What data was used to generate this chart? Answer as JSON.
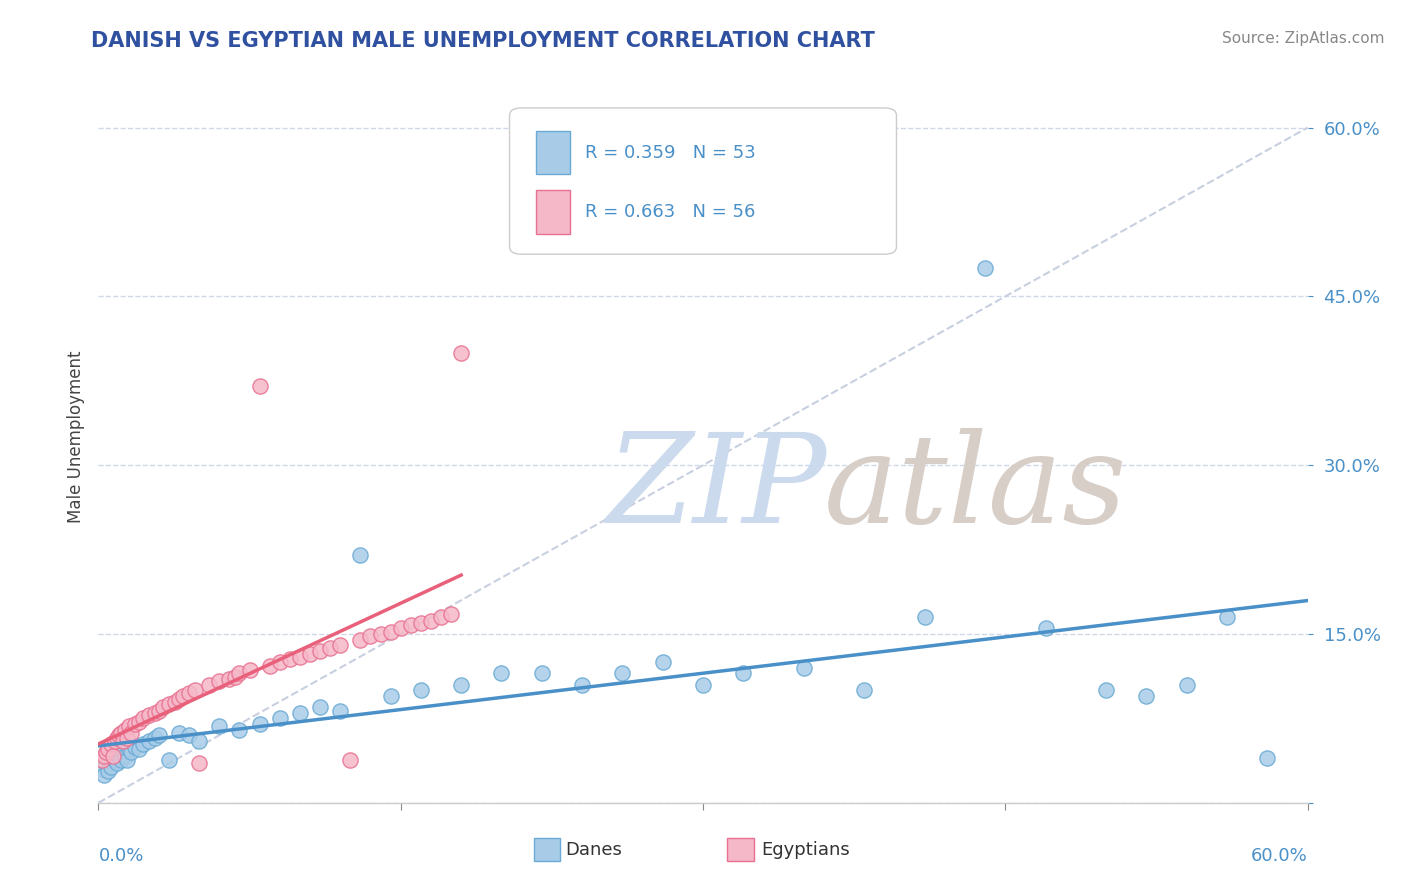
{
  "title": "DANISH VS EGYPTIAN MALE UNEMPLOYMENT CORRELATION CHART",
  "source": "Source: ZipAtlas.com",
  "ylabel": "Male Unemployment",
  "yticks": [
    0.0,
    0.15,
    0.3,
    0.45,
    0.6
  ],
  "ytick_labels": [
    "",
    "15.0%",
    "30.0%",
    "45.0%",
    "60.0%"
  ],
  "xlim": [
    0.0,
    0.6
  ],
  "ylim": [
    0.0,
    0.65
  ],
  "danes_R": 0.359,
  "danes_N": 53,
  "egyptians_R": 0.663,
  "egyptians_N": 56,
  "danes_color": "#a8cce8",
  "egyptians_color": "#f5b8c8",
  "danes_edge_color": "#6aaad4",
  "egyptians_edge_color": "#e87090",
  "danes_trend_color": "#4a90c8",
  "egyptians_trend_color": "#e8607a",
  "danes_scatter_x": [
    0.002,
    0.003,
    0.004,
    0.005,
    0.006,
    0.007,
    0.008,
    0.009,
    0.01,
    0.011,
    0.012,
    0.013,
    0.014,
    0.015,
    0.016,
    0.018,
    0.02,
    0.022,
    0.025,
    0.028,
    0.03,
    0.035,
    0.04,
    0.045,
    0.05,
    0.06,
    0.07,
    0.08,
    0.09,
    0.1,
    0.11,
    0.12,
    0.13,
    0.145,
    0.16,
    0.18,
    0.2,
    0.22,
    0.24,
    0.26,
    0.28,
    0.3,
    0.32,
    0.35,
    0.38,
    0.41,
    0.44,
    0.47,
    0.5,
    0.52,
    0.54,
    0.56,
    0.58
  ],
  "danes_scatter_y": [
    0.03,
    0.025,
    0.035,
    0.028,
    0.032,
    0.04,
    0.038,
    0.035,
    0.042,
    0.038,
    0.045,
    0.042,
    0.038,
    0.048,
    0.045,
    0.05,
    0.048,
    0.052,
    0.055,
    0.058,
    0.06,
    0.038,
    0.062,
    0.06,
    0.055,
    0.068,
    0.065,
    0.07,
    0.075,
    0.08,
    0.085,
    0.082,
    0.22,
    0.095,
    0.1,
    0.105,
    0.115,
    0.115,
    0.105,
    0.115,
    0.125,
    0.105,
    0.115,
    0.12,
    0.1,
    0.165,
    0.475,
    0.155,
    0.1,
    0.095,
    0.105,
    0.165,
    0.04
  ],
  "egyptians_scatter_x": [
    0.002,
    0.003,
    0.004,
    0.005,
    0.006,
    0.007,
    0.008,
    0.009,
    0.01,
    0.011,
    0.012,
    0.013,
    0.014,
    0.015,
    0.016,
    0.018,
    0.02,
    0.022,
    0.025,
    0.028,
    0.03,
    0.032,
    0.035,
    0.038,
    0.04,
    0.042,
    0.045,
    0.048,
    0.05,
    0.055,
    0.06,
    0.065,
    0.068,
    0.07,
    0.075,
    0.08,
    0.085,
    0.09,
    0.095,
    0.1,
    0.105,
    0.11,
    0.115,
    0.12,
    0.125,
    0.13,
    0.135,
    0.14,
    0.145,
    0.15,
    0.155,
    0.16,
    0.165,
    0.17,
    0.175,
    0.18
  ],
  "egyptians_scatter_y": [
    0.038,
    0.042,
    0.045,
    0.048,
    0.052,
    0.042,
    0.055,
    0.058,
    0.06,
    0.062,
    0.055,
    0.065,
    0.058,
    0.068,
    0.062,
    0.07,
    0.072,
    0.075,
    0.078,
    0.08,
    0.082,
    0.085,
    0.088,
    0.09,
    0.092,
    0.095,
    0.098,
    0.1,
    0.035,
    0.105,
    0.108,
    0.11,
    0.112,
    0.115,
    0.118,
    0.37,
    0.122,
    0.125,
    0.128,
    0.13,
    0.132,
    0.135,
    0.138,
    0.14,
    0.038,
    0.145,
    0.148,
    0.15,
    0.152,
    0.155,
    0.158,
    0.16,
    0.162,
    0.165,
    0.168,
    0.4
  ],
  "background_color": "#ffffff",
  "grid_color": "#d0d8e8",
  "watermark_zip_color": "#ccdaee",
  "watermark_atlas_color": "#d8cec8"
}
